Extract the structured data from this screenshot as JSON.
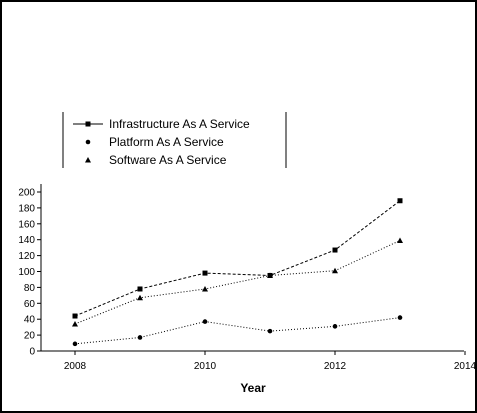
{
  "chart_data": {
    "type": "line",
    "title": "",
    "xlabel": "Year",
    "ylabel": "",
    "xlim": [
      2007,
      2014
    ],
    "ylim": [
      0,
      210
    ],
    "x_ticks": [
      2008,
      2010,
      2012,
      2014
    ],
    "y_ticks": [
      0,
      20,
      40,
      60,
      80,
      100,
      120,
      140,
      160,
      180,
      200
    ],
    "grid": false,
    "legend_position": "upper-left",
    "x": [
      2008,
      2009,
      2010,
      2011,
      2012,
      2013
    ],
    "series": [
      {
        "name": "Infrastructure As A Service",
        "marker": "square",
        "line": "solid",
        "values": [
          44,
          78,
          98,
          95,
          127,
          189
        ]
      },
      {
        "name": "Platform As A Service",
        "marker": "circle",
        "line": "dotted",
        "values": [
          9,
          17,
          37,
          25,
          31,
          42
        ]
      },
      {
        "name": "Software As A Service",
        "marker": "triangle",
        "line": "dotted",
        "values": [
          34,
          67,
          78,
          95,
          101,
          139
        ]
      }
    ]
  }
}
